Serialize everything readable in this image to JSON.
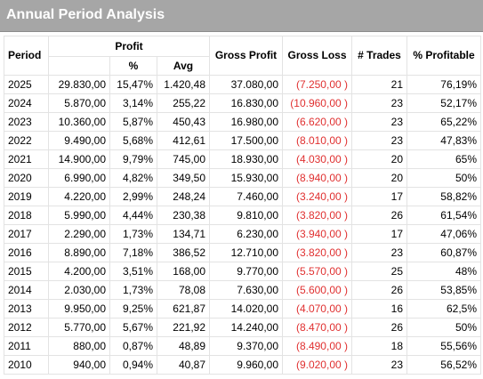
{
  "title": "Annual Period Analysis",
  "headers": {
    "period": "Period",
    "profit": "Profit",
    "pct": "%",
    "avg": "Avg",
    "gross_profit": "Gross Profit",
    "gross_loss": "Gross Loss",
    "trades": "# Trades",
    "pct_profitable": "% Profitable"
  },
  "colors": {
    "title_bg": "#a6a6a6",
    "negative": "#e03030"
  },
  "rows": [
    {
      "period": "2025",
      "profit": "29.830,00",
      "pct": "15,47%",
      "avg": "1.420,48",
      "gross_profit": "37.080,00",
      "gross_loss": "(7.250,00 )",
      "trades": "21",
      "pct_profitable": "76,19%"
    },
    {
      "period": "2024",
      "profit": "5.870,00",
      "pct": "3,14%",
      "avg": "255,22",
      "gross_profit": "16.830,00",
      "gross_loss": "(10.960,00 )",
      "trades": "23",
      "pct_profitable": "52,17%"
    },
    {
      "period": "2023",
      "profit": "10.360,00",
      "pct": "5,87%",
      "avg": "450,43",
      "gross_profit": "16.980,00",
      "gross_loss": "(6.620,00 )",
      "trades": "23",
      "pct_profitable": "65,22%"
    },
    {
      "period": "2022",
      "profit": "9.490,00",
      "pct": "5,68%",
      "avg": "412,61",
      "gross_profit": "17.500,00",
      "gross_loss": "(8.010,00 )",
      "trades": "23",
      "pct_profitable": "47,83%"
    },
    {
      "period": "2021",
      "profit": "14.900,00",
      "pct": "9,79%",
      "avg": "745,00",
      "gross_profit": "18.930,00",
      "gross_loss": "(4.030,00 )",
      "trades": "20",
      "pct_profitable": "65%"
    },
    {
      "period": "2020",
      "profit": "6.990,00",
      "pct": "4,82%",
      "avg": "349,50",
      "gross_profit": "15.930,00",
      "gross_loss": "(8.940,00 )",
      "trades": "20",
      "pct_profitable": "50%"
    },
    {
      "period": "2019",
      "profit": "4.220,00",
      "pct": "2,99%",
      "avg": "248,24",
      "gross_profit": "7.460,00",
      "gross_loss": "(3.240,00 )",
      "trades": "17",
      "pct_profitable": "58,82%"
    },
    {
      "period": "2018",
      "profit": "5.990,00",
      "pct": "4,44%",
      "avg": "230,38",
      "gross_profit": "9.810,00",
      "gross_loss": "(3.820,00 )",
      "trades": "26",
      "pct_profitable": "61,54%"
    },
    {
      "period": "2017",
      "profit": "2.290,00",
      "pct": "1,73%",
      "avg": "134,71",
      "gross_profit": "6.230,00",
      "gross_loss": "(3.940,00 )",
      "trades": "17",
      "pct_profitable": "47,06%"
    },
    {
      "period": "2016",
      "profit": "8.890,00",
      "pct": "7,18%",
      "avg": "386,52",
      "gross_profit": "12.710,00",
      "gross_loss": "(3.820,00 )",
      "trades": "23",
      "pct_profitable": "60,87%"
    },
    {
      "period": "2015",
      "profit": "4.200,00",
      "pct": "3,51%",
      "avg": "168,00",
      "gross_profit": "9.770,00",
      "gross_loss": "(5.570,00 )",
      "trades": "25",
      "pct_profitable": "48%"
    },
    {
      "period": "2014",
      "profit": "2.030,00",
      "pct": "1,73%",
      "avg": "78,08",
      "gross_profit": "7.630,00",
      "gross_loss": "(5.600,00 )",
      "trades": "26",
      "pct_profitable": "53,85%"
    },
    {
      "period": "2013",
      "profit": "9.950,00",
      "pct": "9,25%",
      "avg": "621,87",
      "gross_profit": "14.020,00",
      "gross_loss": "(4.070,00 )",
      "trades": "16",
      "pct_profitable": "62,5%"
    },
    {
      "period": "2012",
      "profit": "5.770,00",
      "pct": "5,67%",
      "avg": "221,92",
      "gross_profit": "14.240,00",
      "gross_loss": "(8.470,00 )",
      "trades": "26",
      "pct_profitable": "50%"
    },
    {
      "period": "2011",
      "profit": "880,00",
      "pct": "0,87%",
      "avg": "48,89",
      "gross_profit": "9.370,00",
      "gross_loss": "(8.490,00 )",
      "trades": "18",
      "pct_profitable": "55,56%"
    },
    {
      "period": "2010",
      "profit": "940,00",
      "pct": "0,94%",
      "avg": "40,87",
      "gross_profit": "9.960,00",
      "gross_loss": "(9.020,00 )",
      "trades": "23",
      "pct_profitable": "56,52%"
    }
  ]
}
